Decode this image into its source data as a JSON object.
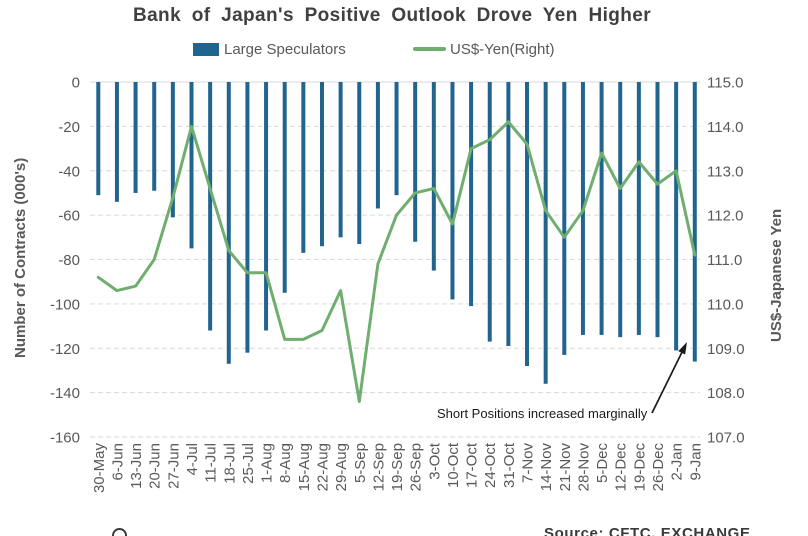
{
  "chart_data": {
    "type": "bar",
    "title": "Bank of Japan's Positive Outlook Drove Yen Higher",
    "categories": [
      "30-May",
      "6-Jun",
      "13-Jun",
      "20-Jun",
      "27-Jun",
      "4-Jul",
      "11-Jul",
      "18-Jul",
      "25-Jul",
      "1-Aug",
      "8-Aug",
      "15-Aug",
      "22-Aug",
      "29-Aug",
      "5-Sep",
      "12-Sep",
      "19-Sep",
      "26-Sep",
      "3-Oct",
      "10-Oct",
      "17-Oct",
      "24-Oct",
      "31-Oct",
      "7-Nov",
      "14-Nov",
      "21-Nov",
      "28-Nov",
      "5-Dec",
      "12-Dec",
      "19-Dec",
      "26-Dec",
      "2-Jan",
      "9-Jan"
    ],
    "series": [
      {
        "name": "Large Speculators",
        "type": "bar",
        "axis": "left",
        "color": "#206490",
        "values": [
          -51,
          -54,
          -50,
          -49,
          -61,
          -75,
          -112,
          -127,
          -122,
          -112,
          -95,
          -77,
          -74,
          -70,
          -73,
          -57,
          -51,
          -72,
          -85,
          -98,
          -101,
          -117,
          -119,
          -128,
          -136,
          -123,
          -114,
          -114,
          -115,
          -114,
          -115,
          -121,
          -126
        ]
      },
      {
        "name": "US$-Yen(Right)",
        "type": "line",
        "axis": "right",
        "color": "#6fae6f",
        "values": [
          110.6,
          110.3,
          110.4,
          111.0,
          112.4,
          114.0,
          112.6,
          111.2,
          110.7,
          110.7,
          109.2,
          109.2,
          109.4,
          110.3,
          107.8,
          110.9,
          112.0,
          112.5,
          112.6,
          111.8,
          113.5,
          113.7,
          114.1,
          113.6,
          112.1,
          111.5,
          112.1,
          113.4,
          112.6,
          113.2,
          112.7,
          113.0,
          111.1
        ]
      }
    ],
    "left_axis": {
      "label": "Number of Contracts (000's)",
      "range": [
        -160,
        0
      ],
      "ticks": [
        0,
        -20,
        -40,
        -60,
        -80,
        -100,
        -120,
        -140,
        -160
      ]
    },
    "right_axis": {
      "label": "US$-Japanese Yen",
      "range": [
        107,
        115
      ],
      "ticks": [
        "115.0",
        "114.0",
        "113.0",
        "112.0",
        "111.0",
        "110.0",
        "109.0",
        "108.0",
        "107.0"
      ]
    },
    "grid": "horizontal-dashed",
    "legend_position": "top",
    "annotation": {
      "text": "Short Positions increased marginally"
    },
    "footer": {
      "source_text": "Source: CFTC, EXCHANGE"
    }
  },
  "colors": {
    "bar": "#206490",
    "line": "#6fae6f",
    "grid": "#d9d9d9",
    "axis_text": "#595959",
    "title_text": "#404040",
    "annotation_text": "#1a1a1a"
  }
}
